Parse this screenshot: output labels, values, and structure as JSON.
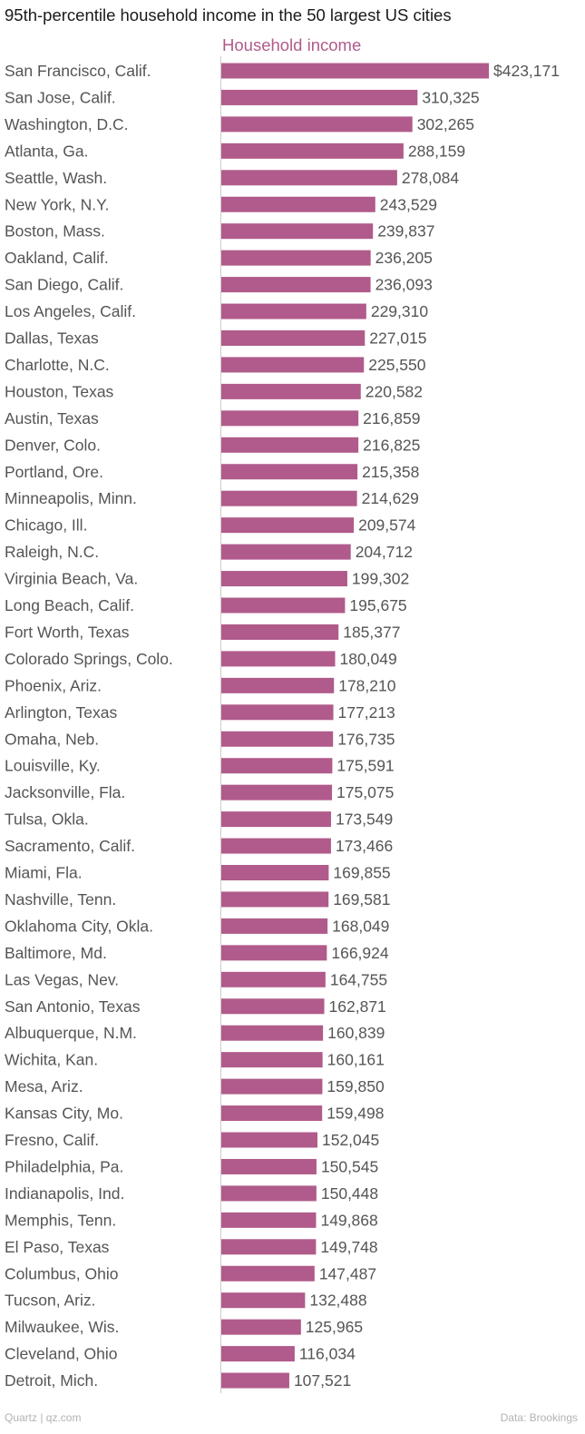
{
  "chart_data": {
    "type": "bar",
    "orientation": "horizontal",
    "title": "95th-percentile household income in the 50 largest US cities",
    "series": [
      {
        "name": "Household income",
        "color": "#b05b8b",
        "values": [
          423171,
          310325,
          302265,
          288159,
          278084,
          243529,
          239837,
          236205,
          236093,
          229310,
          227015,
          225550,
          220582,
          216859,
          216825,
          215358,
          214629,
          209574,
          204712,
          199302,
          195675,
          185377,
          180049,
          178210,
          177213,
          176735,
          175591,
          175075,
          173549,
          173466,
          169855,
          169581,
          168049,
          166924,
          164755,
          162871,
          160839,
          160161,
          159850,
          159498,
          152045,
          150545,
          150448,
          149868,
          149748,
          147487,
          132488,
          125965,
          116034,
          107521
        ],
        "value_labels": [
          "$423,171",
          "310,325",
          "302,265",
          "288,159",
          "278,084",
          "243,529",
          "239,837",
          "236,205",
          "236,093",
          "229,310",
          "227,015",
          "225,550",
          "220,582",
          "216,859",
          "216,825",
          "215,358",
          "214,629",
          "209,574",
          "204,712",
          "199,302",
          "195,675",
          "185,377",
          "180,049",
          "178,210",
          "177,213",
          "176,735",
          "175,591",
          "175,075",
          "173,549",
          "173,466",
          "169,855",
          "169,581",
          "168,049",
          "166,924",
          "164,755",
          "162,871",
          "160,839",
          "160,161",
          "159,850",
          "159,498",
          "152,045",
          "150,545",
          "150,448",
          "149,868",
          "149,748",
          "147,487",
          "132,488",
          "125,965",
          "116,034",
          "107,521"
        ]
      }
    ],
    "categories": [
      "San Francisco, Calif.",
      "San Jose, Calif.",
      "Washington, D.C.",
      "Atlanta, Ga.",
      "Seattle, Wash.",
      "New York, N.Y.",
      "Boston, Mass.",
      "Oakland, Calif.",
      "San Diego, Calif.",
      "Los Angeles, Calif.",
      "Dallas, Texas",
      "Charlotte, N.C.",
      "Houston, Texas",
      "Austin, Texas",
      "Denver, Colo.",
      "Portland, Ore.",
      "Minneapolis, Minn.",
      "Chicago, Ill.",
      "Raleigh, N.C.",
      "Virginia Beach, Va.",
      "Long Beach, Calif.",
      "Fort Worth, Texas",
      "Colorado Springs, Colo.",
      "Phoenix, Ariz.",
      "Arlington, Texas",
      "Omaha, Neb.",
      "Louisville, Ky.",
      "Jacksonville, Fla.",
      "Tulsa, Okla.",
      "Sacramento, Calif.",
      "Miami, Fla.",
      "Nashville, Tenn.",
      "Oklahoma City, Okla.",
      "Baltimore, Md.",
      "Las Vegas, Nev.",
      "San Antonio, Texas",
      "Albuquerque, N.M.",
      "Wichita, Kan.",
      "Mesa, Ariz.",
      "Kansas City, Mo.",
      "Fresno, Calif.",
      "Philadelphia, Pa.",
      "Indianapolis, Ind.",
      "Memphis, Tenn.",
      "El Paso, Texas",
      "Columbus, Ohio",
      "Tucson, Ariz.",
      "Milwaukee, Wis.",
      "Cleveland, Ohio",
      "Detroit, Mich."
    ],
    "xlim": [
      0,
      423171
    ],
    "grid": false,
    "source_left": "Quartz | qz.com",
    "source_right": "Data: Brookings"
  }
}
